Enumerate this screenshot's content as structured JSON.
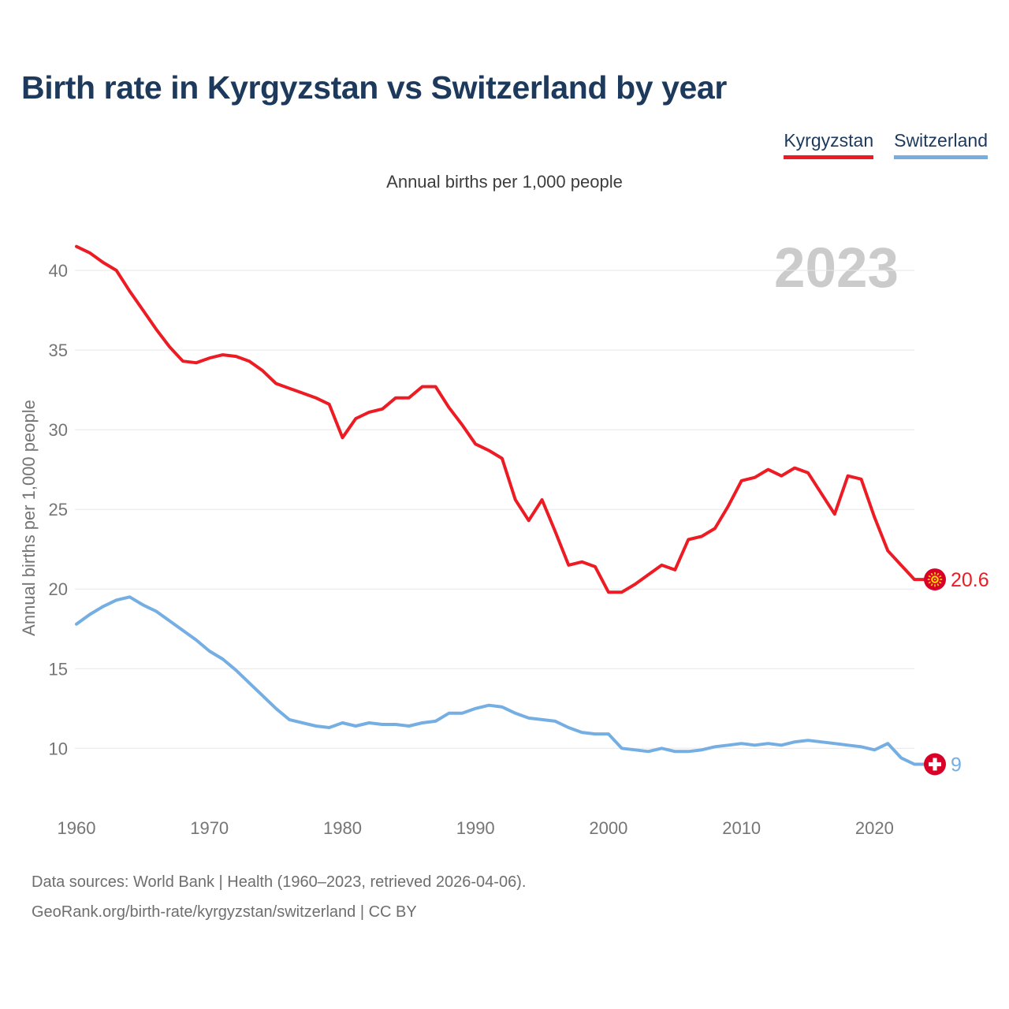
{
  "header": {
    "title": "Birth rate in Kyrgyzstan vs Switzerland by year",
    "subtitle": "Annual births per 1,000 people"
  },
  "watermark": "2023",
  "chart_data": {
    "type": "line",
    "title": "Annual births per 1,000 people",
    "xlabel": "",
    "ylabel": "Annual births per 1,000 people",
    "grid": "horizontal",
    "legend_position": "top-right",
    "x_range": [
      1960,
      2023
    ],
    "ylim": [
      8,
      42.5
    ],
    "xticks": [
      1960,
      1970,
      1980,
      1990,
      2000,
      2010,
      2020
    ],
    "yticks": [
      10,
      15,
      20,
      25,
      30,
      35,
      40
    ],
    "x": [
      1960,
      1961,
      1962,
      1963,
      1964,
      1965,
      1966,
      1967,
      1968,
      1969,
      1970,
      1971,
      1972,
      1973,
      1974,
      1975,
      1976,
      1977,
      1978,
      1979,
      1980,
      1981,
      1982,
      1983,
      1984,
      1985,
      1986,
      1987,
      1988,
      1989,
      1990,
      1991,
      1992,
      1993,
      1994,
      1995,
      1996,
      1997,
      1998,
      1999,
      2000,
      2001,
      2002,
      2003,
      2004,
      2005,
      2006,
      2007,
      2008,
      2009,
      2010,
      2011,
      2012,
      2013,
      2014,
      2015,
      2016,
      2017,
      2018,
      2019,
      2020,
      2021,
      2022,
      2023
    ],
    "series": [
      {
        "name": "Kyrgyzstan",
        "color": "#ed1c24",
        "end_label": "20.6",
        "end_marker": "kyrgyzstan-flag",
        "values": [
          41.5,
          41.1,
          40.5,
          40.0,
          38.7,
          37.5,
          36.3,
          35.2,
          34.3,
          34.2,
          34.5,
          34.7,
          34.6,
          34.3,
          33.7,
          32.9,
          32.6,
          32.3,
          32.0,
          31.6,
          29.5,
          30.7,
          31.1,
          31.3,
          32.0,
          32.0,
          32.7,
          32.7,
          31.4,
          30.3,
          29.1,
          28.7,
          28.2,
          25.6,
          24.3,
          25.6,
          23.6,
          21.5,
          21.7,
          21.4,
          19.8,
          19.8,
          20.3,
          20.9,
          21.5,
          21.2,
          23.1,
          23.3,
          23.8,
          25.2,
          26.8,
          27.0,
          27.5,
          27.1,
          27.6,
          27.3,
          26.0,
          24.7,
          27.1,
          26.9,
          24.5,
          22.4,
          21.5,
          20.6
        ]
      },
      {
        "name": "Switzerland",
        "color": "#74aee2",
        "end_label": "9",
        "end_marker": "switzerland-flag",
        "values": [
          17.8,
          18.4,
          18.9,
          19.3,
          19.5,
          19.0,
          18.6,
          18.0,
          17.4,
          16.8,
          16.1,
          15.6,
          14.9,
          14.1,
          13.3,
          12.5,
          11.8,
          11.6,
          11.4,
          11.3,
          11.6,
          11.4,
          11.6,
          11.5,
          11.5,
          11.4,
          11.6,
          11.7,
          12.2,
          12.2,
          12.5,
          12.7,
          12.6,
          12.2,
          11.9,
          11.8,
          11.7,
          11.3,
          11.0,
          10.9,
          10.9,
          10.0,
          9.9,
          9.8,
          10.0,
          9.8,
          9.8,
          9.9,
          10.1,
          10.2,
          10.3,
          10.2,
          10.3,
          10.2,
          10.4,
          10.5,
          10.4,
          10.3,
          10.2,
          10.1,
          9.9,
          10.3,
          9.4,
          9.0
        ]
      }
    ],
    "marker_colors": {
      "flag_red": "#d80027",
      "flag_yellow": "#ffd200",
      "cross_white": "#ffffff"
    }
  },
  "footer": {
    "line1": "Data sources: World Bank | Health (1960–2023, retrieved 2026-04-06).",
    "line2": "GeoRank.org/birth-rate/kyrgyzstan/switzerland | CC BY"
  }
}
